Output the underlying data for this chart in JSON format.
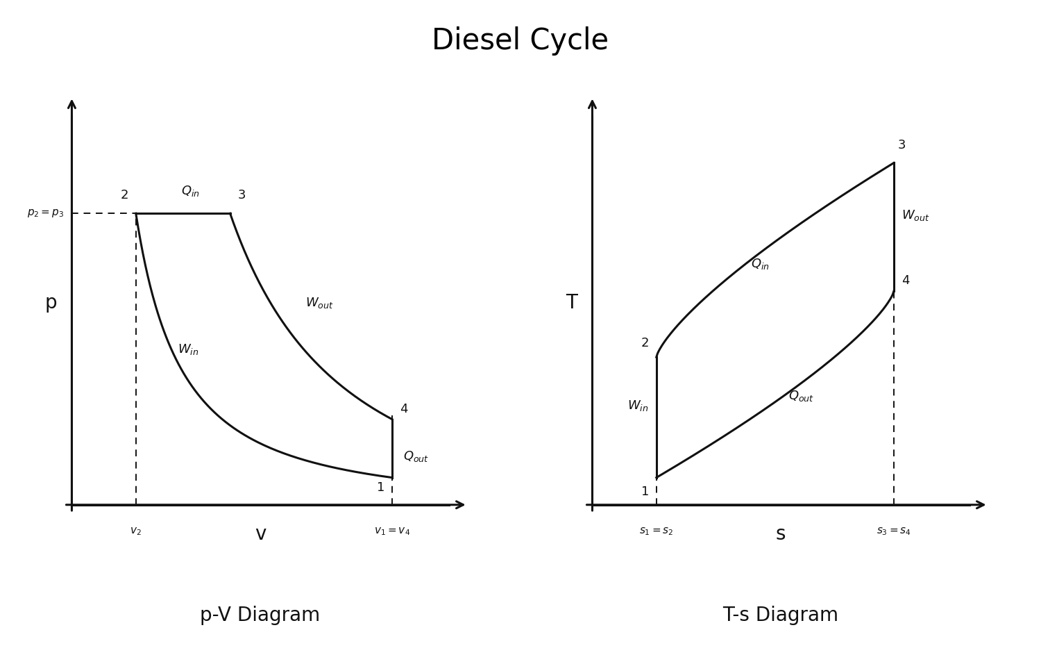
{
  "title": "Diesel Cycle",
  "title_fontsize": 30,
  "bg_color": "#ffffff",
  "line_color": "#111111",
  "subtitle_left": "p-V Diagram",
  "subtitle_right": "T-s Diagram",
  "subtitle_fontsize": 20,
  "footer_color": "#2a2a2a",
  "pv": {
    "v1": 0.85,
    "p1": 0.07,
    "v2": 0.17,
    "p2": 0.75,
    "v3": 0.42,
    "p3": 0.75,
    "v4": 0.85,
    "p4": 0.22,
    "xlabel": "v",
    "ylabel": "p",
    "p23_label": "$p_2 = p_3$",
    "v2_label": "$v_2$",
    "v14_label": "$v_1 = v_4$"
  },
  "ts": {
    "s1": 0.17,
    "T1": 0.07,
    "s2": 0.17,
    "T2": 0.38,
    "s3": 0.8,
    "T3": 0.88,
    "s4": 0.8,
    "T4": 0.55,
    "xlabel": "s",
    "ylabel": "T",
    "s12_label": "$s_1 = s_2$",
    "s34_label": "$s_3 = s_4$"
  },
  "lw": 2.2,
  "label_fontsize": 13,
  "axis_label_fontsize": 20,
  "point_fontsize": 13
}
